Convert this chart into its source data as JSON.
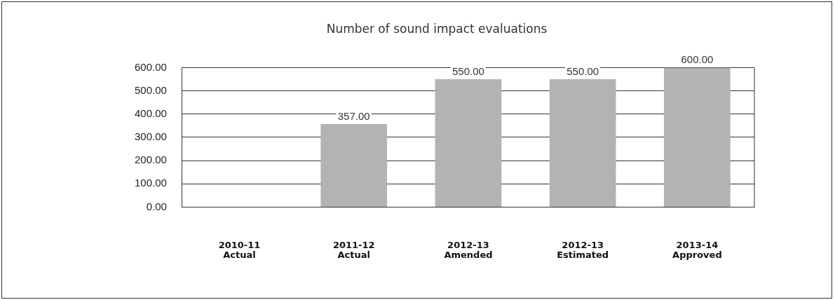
{
  "chart_data": {
    "type": "bar",
    "title": "Number of sound impact evaluations",
    "categories": [
      "2010-11\nActual",
      "2011-12\nActual",
      "2012-13\nAmended",
      "2012-13\nEstimated",
      "2013-14\nApproved"
    ],
    "values": [
      null,
      357,
      550,
      550,
      600
    ],
    "value_labels": [
      null,
      "357.00",
      "550.00",
      "550.00",
      "600.00"
    ],
    "color": "#b3b3b3",
    "ylim": [
      0,
      600
    ],
    "yticks": [
      {
        "value": 0,
        "label": "0.00"
      },
      {
        "value": 100,
        "label": "100.00"
      },
      {
        "value": 200,
        "label": "200.00"
      },
      {
        "value": 300,
        "label": "300.00"
      },
      {
        "value": 400,
        "label": "400.00"
      },
      {
        "value": 500,
        "label": "500.00"
      },
      {
        "value": 600,
        "label": "600.00"
      }
    ],
    "grid": "y",
    "legend": false
  }
}
